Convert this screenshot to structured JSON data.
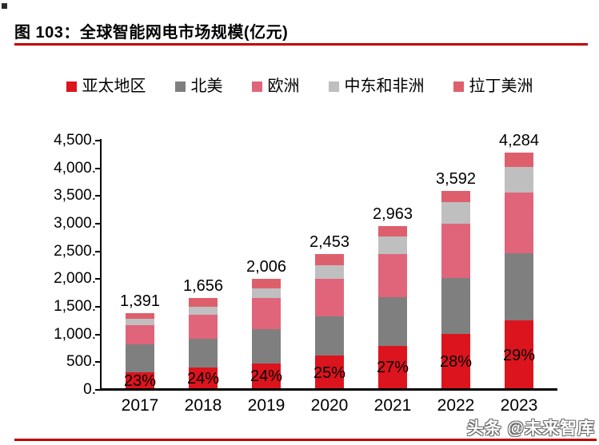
{
  "figure": {
    "title": "图 103：全球智能网电市场规模(亿元)",
    "watermark": "头条 @未来智库"
  },
  "colors": {
    "rule_red": "#c00000",
    "axis_black": "#000000"
  },
  "chart_data": {
    "type": "bar",
    "stacked": true,
    "title": "全球智能网电市场规模(亿元)",
    "xlabel": "",
    "ylabel": "",
    "categories": [
      "2017",
      "2018",
      "2019",
      "2020",
      "2021",
      "2022",
      "2023"
    ],
    "series": [
      {
        "name": "亚太地区",
        "color": "#dc141e",
        "values": [
          320,
          397,
          481,
          613,
          800,
          1006,
          1250
        ]
      },
      {
        "name": "北美",
        "color": "#7f7f7f",
        "values": [
          500,
          525,
          615,
          715,
          875,
          1010,
          1220
        ]
      },
      {
        "name": "欧洲",
        "color": "#e0657a",
        "values": [
          345,
          435,
          560,
          680,
          780,
          990,
          1090
        ]
      },
      {
        "name": "中东和非洲",
        "color": "#bfbfbf",
        "values": [
          120,
          150,
          170,
          245,
          310,
          390,
          465
        ]
      },
      {
        "name": "拉丁美洲",
        "color": "#de5f6c",
        "values": [
          106,
          149,
          180,
          200,
          198,
          196,
          259
        ]
      }
    ],
    "totals": [
      1391,
      1656,
      2006,
      2453,
      2963,
      3592,
      4284
    ],
    "total_labels": [
      "1,391",
      "1,656",
      "2,006",
      "2,453",
      "2,963",
      "3,592",
      "4,284"
    ],
    "pct_labels": [
      "23%",
      "24%",
      "24%",
      "25%",
      "27%",
      "28%",
      "29%"
    ],
    "y_tick_labels": [
      "0.",
      "500.",
      "1,000.",
      "1,500.",
      "2,000.",
      "2,500.",
      "3,000.",
      "3,500.",
      "4,000.",
      "4,500."
    ],
    "y_tick_values": [
      0,
      500,
      1000,
      1500,
      2000,
      2500,
      3000,
      3500,
      4000,
      4500
    ],
    "ylim": [
      0,
      4500
    ],
    "grid": false,
    "legend_position": "top"
  }
}
